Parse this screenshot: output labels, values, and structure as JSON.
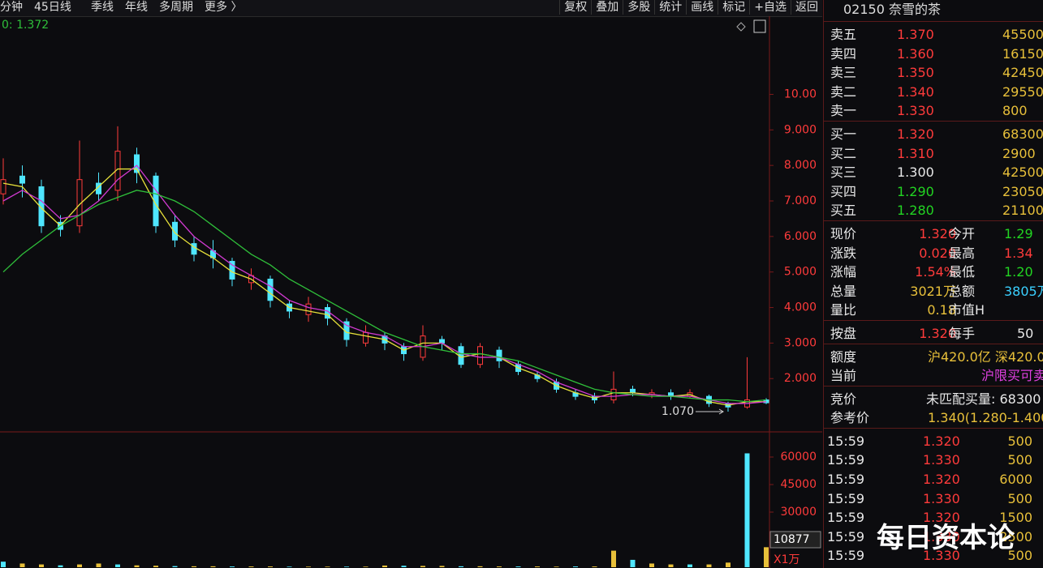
{
  "toolbar": {
    "left": [
      "分钟",
      "45日线",
      "季线",
      "年线",
      "多周期",
      "更多 〉"
    ],
    "right": [
      "复权",
      "叠加",
      "多股",
      "统计",
      "画线",
      "标记",
      "+自选",
      "返回"
    ]
  },
  "chart_data": [
    {
      "type": "candlestick",
      "legend_text": "0: 1.372",
      "open": [
        7.2,
        7.7,
        7.4,
        6.4,
        6.3,
        7.5,
        7.3,
        8.3,
        7.7,
        6.4,
        5.8,
        5.6,
        5.3,
        4.7,
        4.8,
        4.1,
        3.8,
        4.0,
        3.6,
        3.0,
        3.2,
        2.9,
        2.6,
        3.1,
        2.9,
        2.4,
        2.8,
        2.4,
        2.1,
        1.9,
        1.6,
        1.5,
        1.4,
        1.7,
        1.55,
        1.6,
        1.5,
        1.5,
        1.3,
        1.2,
        1.4
      ],
      "high": [
        8.2,
        8.0,
        7.6,
        6.6,
        8.7,
        7.8,
        9.1,
        8.5,
        7.8,
        6.6,
        6.0,
        5.9,
        5.4,
        5.1,
        4.9,
        4.2,
        4.3,
        4.1,
        3.7,
        3.5,
        3.3,
        3.0,
        3.5,
        3.2,
        3.0,
        3.0,
        2.9,
        2.5,
        2.2,
        2.0,
        1.7,
        1.6,
        2.2,
        1.8,
        1.7,
        1.7,
        1.7,
        1.55,
        1.35,
        2.6,
        1.45
      ],
      "low": [
        6.9,
        7.1,
        6.1,
        6.0,
        6.1,
        7.0,
        7.0,
        7.5,
        6.1,
        5.7,
        5.3,
        5.1,
        4.6,
        4.5,
        4.0,
        3.7,
        3.6,
        3.5,
        2.9,
        2.9,
        2.8,
        2.5,
        2.5,
        2.8,
        2.3,
        2.3,
        2.3,
        2.1,
        1.9,
        1.6,
        1.4,
        1.3,
        1.3,
        1.5,
        1.45,
        1.4,
        1.45,
        1.2,
        1.07,
        1.15,
        1.28
      ],
      "close": [
        7.6,
        7.5,
        6.3,
        6.2,
        7.6,
        7.2,
        8.4,
        7.8,
        6.3,
        5.9,
        5.5,
        5.4,
        4.8,
        4.9,
        4.2,
        3.9,
        4.1,
        3.7,
        3.1,
        3.3,
        3.0,
        2.7,
        3.2,
        3.0,
        2.4,
        2.9,
        2.5,
        2.2,
        2.0,
        1.7,
        1.5,
        1.4,
        1.7,
        1.6,
        1.6,
        1.5,
        1.6,
        1.3,
        1.2,
        1.4,
        1.32
      ],
      "up_color": "#ff3b3b",
      "down_color": "#4fe6ff",
      "series": [
        {
          "color": "#e8e23a",
          "values": [
            7.5,
            7.4,
            6.8,
            6.3,
            6.9,
            7.4,
            7.9,
            7.9,
            6.9,
            6.1,
            5.7,
            5.4,
            5.0,
            4.8,
            4.4,
            4.0,
            3.9,
            3.8,
            3.3,
            3.2,
            3.1,
            2.8,
            3.0,
            3.0,
            2.6,
            2.7,
            2.6,
            2.3,
            2.1,
            1.8,
            1.6,
            1.45,
            1.6,
            1.6,
            1.55,
            1.5,
            1.55,
            1.35,
            1.25,
            1.35,
            1.35
          ]
        },
        {
          "color": "#d23ad2",
          "values": [
            7.0,
            7.3,
            7.0,
            6.5,
            6.6,
            7.0,
            7.6,
            8.0,
            7.3,
            6.6,
            6.0,
            5.6,
            5.2,
            4.9,
            4.6,
            4.2,
            4.0,
            3.9,
            3.5,
            3.3,
            3.2,
            2.9,
            2.9,
            3.0,
            2.7,
            2.6,
            2.6,
            2.4,
            2.2,
            1.9,
            1.7,
            1.5,
            1.5,
            1.55,
            1.55,
            1.5,
            1.5,
            1.4,
            1.3,
            1.3,
            1.35
          ]
        },
        {
          "color": "#2fbf3a",
          "values": [
            5.0,
            5.5,
            5.9,
            6.3,
            6.6,
            6.9,
            7.1,
            7.3,
            7.2,
            7.0,
            6.7,
            6.3,
            5.9,
            5.5,
            5.2,
            4.8,
            4.5,
            4.2,
            3.9,
            3.6,
            3.3,
            3.1,
            2.9,
            2.8,
            2.7,
            2.7,
            2.6,
            2.5,
            2.3,
            2.1,
            1.9,
            1.7,
            1.6,
            1.55,
            1.5,
            1.5,
            1.45,
            1.4,
            1.4,
            1.35,
            1.4
          ]
        }
      ],
      "ylim": [
        0.5,
        12.2
      ],
      "yticks": [
        {
          "value": 10,
          "label": "10.00"
        },
        {
          "value": 9,
          "label": "9.000"
        },
        {
          "value": 8,
          "label": "8.000"
        },
        {
          "value": 7,
          "label": "7.000"
        },
        {
          "value": 6,
          "label": "6.000"
        },
        {
          "value": 5,
          "label": "5.000"
        },
        {
          "value": 4,
          "label": "4.000"
        },
        {
          "value": 3,
          "label": "3.000"
        },
        {
          "value": 2,
          "label": "2.000"
        }
      ],
      "low_annotation": {
        "value": 1.07,
        "label": "1.070"
      }
    },
    {
      "type": "bar",
      "unit_label": "X1万",
      "color": "#e8c03a",
      "values": [
        3000,
        2000,
        1500,
        1000,
        1500,
        2000,
        1500,
        1000,
        800,
        600,
        500,
        500,
        400,
        400,
        400,
        300,
        300,
        300,
        300,
        300,
        900,
        800,
        700,
        700,
        500,
        500,
        400,
        400,
        400,
        300,
        400,
        400,
        9000,
        4000,
        2000,
        1500,
        1500,
        1500,
        2500,
        62000,
        10877
      ],
      "ylim": [
        0,
        70600
      ],
      "yticks": [
        60000,
        45000,
        30000
      ]
    }
  ],
  "quote": {
    "title": "02150 奈雪的茶",
    "asks": [
      [
        "卖五",
        "1.370",
        "45500"
      ],
      [
        "卖四",
        "1.360",
        "16150"
      ],
      [
        "卖三",
        "1.350",
        "42450"
      ],
      [
        "卖二",
        "1.340",
        "29550"
      ],
      [
        "卖一",
        "1.330",
        "800"
      ]
    ],
    "bids": [
      [
        "买一",
        "1.320",
        "68300"
      ],
      [
        "买二",
        "1.310",
        "2900"
      ],
      [
        "买三",
        "1.300",
        "42500"
      ],
      [
        "买四",
        "1.290",
        "23050"
      ],
      [
        "买五",
        "1.280",
        "21100"
      ]
    ],
    "stats": [
      [
        "现价",
        "1.320",
        "今开",
        "1.29"
      ],
      [
        "涨跌",
        "0.020",
        "最高",
        "1.34"
      ],
      [
        "涨幅",
        "1.54%",
        "最低",
        "1.20"
      ],
      [
        "总量",
        "3021万",
        "总额",
        "3805万"
      ],
      [
        "量比",
        "0.18",
        "市值H"
      ]
    ],
    "lot": [
      "按盘",
      "1.320",
      "每手",
      "50"
    ],
    "quota": [
      [
        "额度",
        "沪420.0亿 深420.0亿"
      ],
      [
        "当前",
        "沪限买可卖"
      ]
    ],
    "auction": [
      [
        "竞价",
        "未匹配买量: 68300"
      ],
      [
        "参考价",
        "1.340(1.280-1.400"
      ]
    ],
    "trades": [
      [
        "15:59",
        "1.320",
        "500"
      ],
      [
        "15:59",
        "1.330",
        "500"
      ],
      [
        "15:59",
        "1.320",
        "6000"
      ],
      [
        "15:59",
        "1.330",
        "500"
      ],
      [
        "15:59",
        "1.320",
        "1500"
      ],
      [
        "15:59",
        "1.330",
        "2500"
      ],
      [
        "15:59",
        "1.330",
        "500"
      ]
    ]
  },
  "watermark": "每日资本论"
}
